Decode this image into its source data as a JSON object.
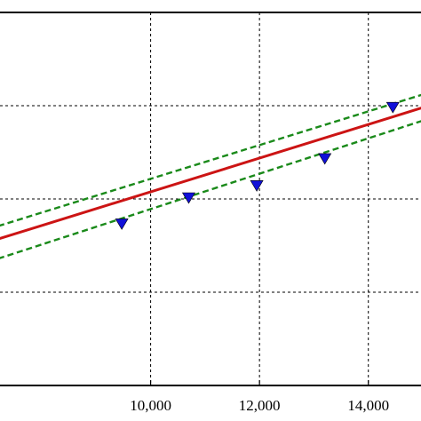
{
  "chart_data": {
    "type": "scatter",
    "title": "",
    "xlabel": "",
    "ylabel": "",
    "grid": true,
    "xlim": [
      7200,
      15000
    ],
    "ylim": [
      0,
      4
    ],
    "x_ticks": [
      {
        "value": 10000,
        "label": "10,000"
      },
      {
        "value": 12000,
        "label": "12,000"
      },
      {
        "value": 14000,
        "label": "14,000"
      }
    ],
    "y_gridlines": [
      1,
      2,
      3
    ],
    "series": [
      {
        "kind": "points",
        "marker": "triangle-down",
        "color": "#1010d8",
        "x": [
          9470,
          10700,
          11950,
          13200,
          14450
        ],
        "y": [
          1.73,
          2.01,
          2.14,
          2.43,
          2.98
        ]
      },
      {
        "kind": "line",
        "style": "solid",
        "color": "#cc1414",
        "x": [
          7200,
          15000
        ],
        "y": [
          1.57,
          2.98
        ]
      },
      {
        "kind": "line",
        "style": "dashed",
        "color": "#1a8a1a",
        "x": [
          7200,
          15000
        ],
        "y": [
          1.71,
          3.12
        ]
      },
      {
        "kind": "line",
        "style": "dashed",
        "color": "#1a8a1a",
        "x": [
          7200,
          15000
        ],
        "y": [
          1.36,
          2.84
        ]
      }
    ]
  }
}
